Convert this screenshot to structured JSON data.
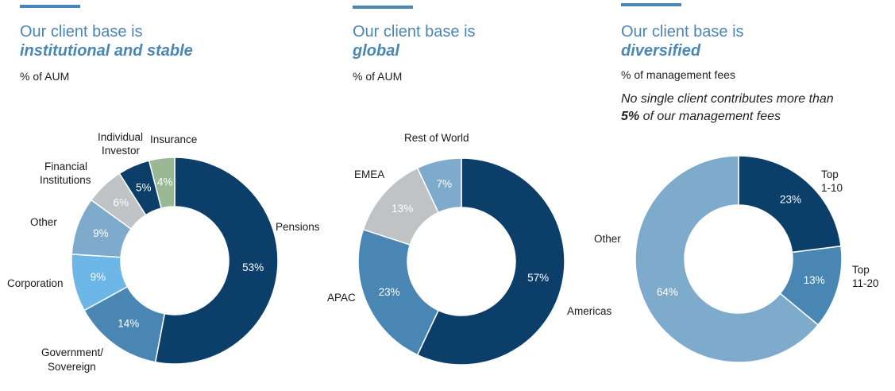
{
  "panels": [
    {
      "title_line1": "Our client base is",
      "title_emph": "institutional and stable",
      "subtitle": "% of AUM"
    },
    {
      "title_line1": "Our client base is",
      "title_emph": "global",
      "subtitle": "% of AUM"
    },
    {
      "title_line1": "Our client base is",
      "title_emph": "diversified",
      "subtitle": "% of management fees",
      "note_line1": "No single client contributes more than",
      "note_bold": "5%",
      "note_rest": " of our management fees"
    }
  ],
  "chart_data": [
    {
      "type": "pie",
      "title": "Our client base is institutional and stable",
      "unit": "% of AUM",
      "categories": [
        "Pensions",
        "Government/ Sovereign",
        "Corporation",
        "Other",
        "Financial Institutions",
        "Individual Investor",
        "Insurance"
      ],
      "values": [
        53,
        14,
        9,
        9,
        6,
        5,
        4
      ],
      "value_labels": [
        "53%",
        "14%",
        "9%",
        "9%",
        "6%",
        "5%",
        "4%"
      ],
      "colors": [
        "#0b3f6a",
        "#4a86b4",
        "#6cb6e8",
        "#7eaacc",
        "#c0c3c6",
        "#0b3f6a",
        "#98b994"
      ]
    },
    {
      "type": "pie",
      "title": "Our client base is global",
      "unit": "% of AUM",
      "categories": [
        "Americas",
        "APAC",
        "EMEA",
        "Rest of World"
      ],
      "values": [
        57,
        23,
        13,
        7
      ],
      "value_labels": [
        "57%",
        "23%",
        "13%",
        "7%"
      ],
      "colors": [
        "#0b3f6a",
        "#4a86b4",
        "#c0c3c6",
        "#7eaacc"
      ]
    },
    {
      "type": "pie",
      "title": "Our client base is diversified",
      "unit": "% of management fees",
      "categories": [
        "Top 1-10",
        "Top 11-20",
        "Other"
      ],
      "values": [
        23,
        13,
        64
      ],
      "value_labels": [
        "23%",
        "13%",
        "64%"
      ],
      "colors": [
        "#0b3f6a",
        "#4a86b4",
        "#7eaacc"
      ]
    }
  ]
}
